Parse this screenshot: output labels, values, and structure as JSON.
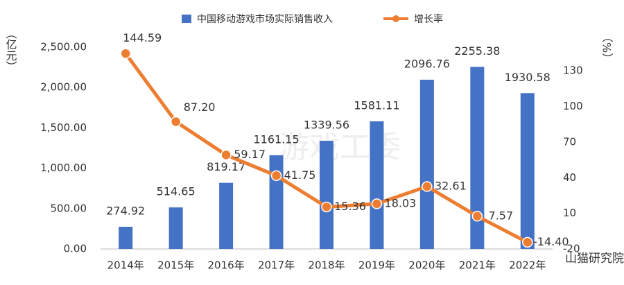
{
  "chart_data": {
    "type": "bar-line",
    "categories": [
      "2014年",
      "2015年",
      "2016年",
      "2017年",
      "2018年",
      "2019年",
      "2020年",
      "2021年",
      "2022年"
    ],
    "series": [
      {
        "name": "中国移动游戏市场实际销售收入",
        "color": "#4472c4",
        "type": "bar",
        "values": [
          274.92,
          514.65,
          819.17,
          1161.15,
          1339.56,
          1581.11,
          2096.76,
          2255.38,
          1930.58
        ]
      },
      {
        "name": "增长率",
        "color": "#ed7d31",
        "type": "line",
        "axis": "y2",
        "values": [
          144.59,
          87.2,
          59.17,
          41.75,
          15.36,
          18.03,
          32.61,
          7.57,
          -14.4
        ],
        "value_labels": [
          "144.59",
          "87.20",
          "59.17",
          "41.75",
          "15.36",
          "18.03",
          "32.61",
          "7.57",
          "-14.40"
        ]
      }
    ],
    "y_label": "（亿元）",
    "y2_label": "（%）",
    "ylim": [
      0,
      2500
    ],
    "yticks": [
      {
        "value": 0,
        "label": "0.00"
      },
      {
        "value": 500,
        "label": "500.00"
      },
      {
        "value": 1000,
        "label": "1,000.00"
      },
      {
        "value": 1500,
        "label": "1,500.00"
      },
      {
        "value": 2000,
        "label": "2,000.00"
      },
      {
        "value": 2500,
        "label": "2,500.00"
      }
    ],
    "y2lim": [
      -20,
      150
    ],
    "y2ticks": [
      -20,
      10,
      40,
      70,
      100,
      130
    ],
    "legend": "top",
    "watermark": "游戏工委",
    "source": "山猫研究院"
  }
}
